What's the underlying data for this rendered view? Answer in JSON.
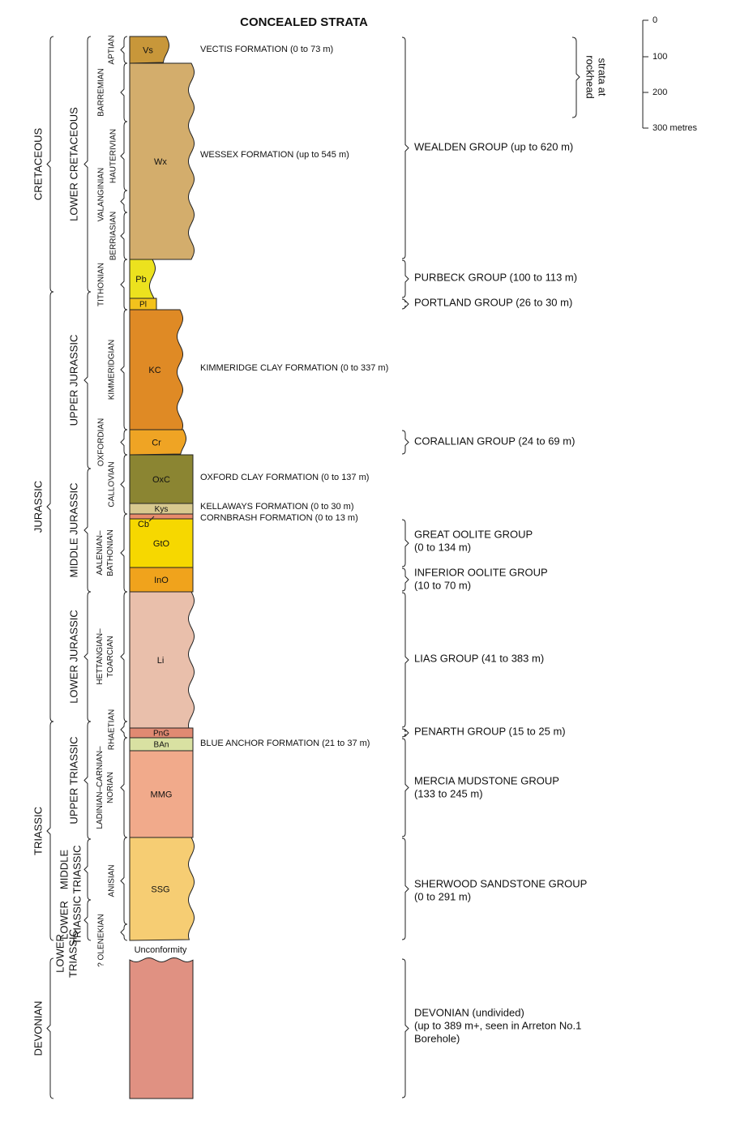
{
  "title": "CONCEALED STRATA",
  "scale": {
    "ticks": [
      "0",
      "100",
      "200",
      "300 metres"
    ],
    "note": [
      "strata at",
      "rockhead"
    ]
  },
  "periods": [
    "CRETACEOUS",
    "JURASSIC",
    "TRIASSIC",
    "DEVONIAN"
  ],
  "epochs": [
    [
      "LOWER CRETACEOUS"
    ],
    [
      "UPPER JURASSIC"
    ],
    [
      "MIDDLE JURASSIC"
    ],
    [
      "LOWER JURASSIC"
    ],
    [
      "UPPER TRIASSIC"
    ],
    [
      "MIDDLE",
      "TRIASSIC"
    ],
    [
      "LOWER",
      "TRIASSIC"
    ],
    [
      "LOWER",
      "TRIASSIC"
    ]
  ],
  "stages": [
    [
      "APTIAN"
    ],
    [
      "BARREMIAN"
    ],
    [
      "HAUTERIVIAN"
    ],
    [
      "VALANGINIAN"
    ],
    [
      "BERRIASIAN"
    ],
    [
      "TITHONIAN"
    ],
    [
      "KIMMERIDGIAN"
    ],
    [
      "OXFORDIAN"
    ],
    [
      "CALLOVIAN"
    ],
    [
      "AALENIAN–",
      "BATHONIAN"
    ],
    [
      "HETTANGIAN–",
      "TOARCIAN"
    ],
    [
      "RHAETIAN"
    ],
    [
      "LADINIAN–CARNIAN–",
      "NORIAN"
    ],
    [
      "ANISIAN"
    ],
    [
      "? OLENEKIAN"
    ]
  ],
  "units": [
    "Vs",
    "Wx",
    "Pb",
    "Pl",
    "KC",
    "Cr",
    "OxC",
    "Kys",
    "Cb",
    "GtO",
    "InO",
    "Li",
    "PnG",
    "BAn",
    "MMG",
    "SSG"
  ],
  "formations": [
    "VECTIS FORMATION (0 to 73 m)",
    "WESSEX FORMATION (up to 545 m)",
    "KIMMERIDGE CLAY FORMATION (0 to 337 m)",
    "OXFORD CLAY FORMATION (0 to 137 m)",
    "KELLAWAYS FORMATION (0 to 30 m)",
    "CORNBRASH FORMATION (0 to 13 m)",
    "BLUE ANCHOR FORMATION (21 to 37 m)"
  ],
  "groups": [
    [
      "WEALDEN GROUP (up to 620 m)"
    ],
    [
      "PURBECK GROUP (100 to 113 m)"
    ],
    [
      "PORTLAND GROUP (26 to 30 m)"
    ],
    [
      "CORALLIAN GROUP (24 to 69 m)"
    ],
    [
      "GREAT OOLITE GROUP",
      "(0 to 134 m)"
    ],
    [
      "INFERIOR OOLITE GROUP",
      "(10 to 70 m)"
    ],
    [
      "LIAS GROUP (41 to 383 m)"
    ],
    [
      "PENARTH GROUP (15 to 25 m)"
    ],
    [
      "MERCIA MUDSTONE GROUP",
      "(133 to 245 m)"
    ],
    [
      "SHERWOOD SANDSTONE GROUP",
      "(0 to 291 m)"
    ],
    [
      "DEVONIAN (undivided)",
      "(up to 389 m+, seen in Arreton No.1",
      "Borehole)"
    ]
  ],
  "unconformity": "Unconformity"
}
